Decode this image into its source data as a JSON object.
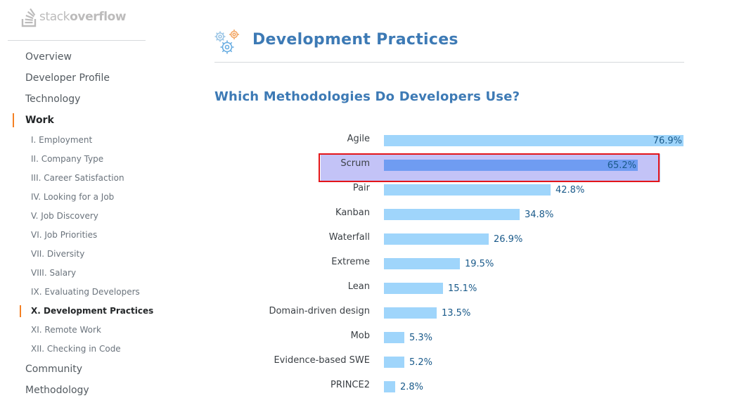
{
  "logo": {
    "text_light": "stack",
    "text_bold": "overflow"
  },
  "sidebar": {
    "items": [
      {
        "label": "Overview",
        "active": false
      },
      {
        "label": "Developer Profile",
        "active": false
      },
      {
        "label": "Technology",
        "active": false
      },
      {
        "label": "Work",
        "active": true
      }
    ],
    "subitems": [
      {
        "label": "I. Employment",
        "active": false
      },
      {
        "label": "II. Company Type",
        "active": false
      },
      {
        "label": "III. Career Satisfaction",
        "active": false
      },
      {
        "label": "IV. Looking for a Job",
        "active": false
      },
      {
        "label": "V. Job Discovery",
        "active": false
      },
      {
        "label": "VI. Job Priorities",
        "active": false
      },
      {
        "label": "VII. Diversity",
        "active": false
      },
      {
        "label": "VIII. Salary",
        "active": false
      },
      {
        "label": "IX. Evaluating Developers",
        "active": false
      },
      {
        "label": "X. Development Practices",
        "active": true
      },
      {
        "label": "XI. Remote Work",
        "active": false
      },
      {
        "label": "XII. Checking in Code",
        "active": false
      }
    ],
    "items_after": [
      {
        "label": "Community",
        "active": false
      },
      {
        "label": "Methodology",
        "active": false
      }
    ]
  },
  "main": {
    "title": "Development Practices",
    "section_title": "Which Methodologies Do Developers Use?",
    "icon": "gears-icon"
  },
  "colors": {
    "accent": "#f48024",
    "title_blue": "#3d7ab5",
    "bar": "#9fd5fb",
    "bar_selected": "#6f9cf2",
    "row_highlight": "#c3c3f7",
    "highlight_border": "#e3151a"
  },
  "chart_data": {
    "type": "bar",
    "orientation": "horizontal",
    "title": "Which Methodologies Do Developers Use?",
    "categories": [
      "Agile",
      "Scrum",
      "Pair",
      "Kanban",
      "Waterfall",
      "Extreme",
      "Lean",
      "Domain-driven design",
      "Mob",
      "Evidence-based SWE",
      "PRINCE2"
    ],
    "values": [
      76.9,
      65.2,
      42.8,
      34.8,
      26.9,
      19.5,
      15.1,
      13.5,
      5.3,
      5.2,
      2.8
    ],
    "value_labels": [
      "76.9%",
      "65.2%",
      "42.8%",
      "34.8%",
      "26.9%",
      "19.5%",
      "15.1%",
      "13.5%",
      "5.3%",
      "5.2%",
      "2.8%"
    ],
    "unit": "%",
    "selected_category": "Scrum",
    "xlim": [
      0,
      76.9
    ]
  }
}
